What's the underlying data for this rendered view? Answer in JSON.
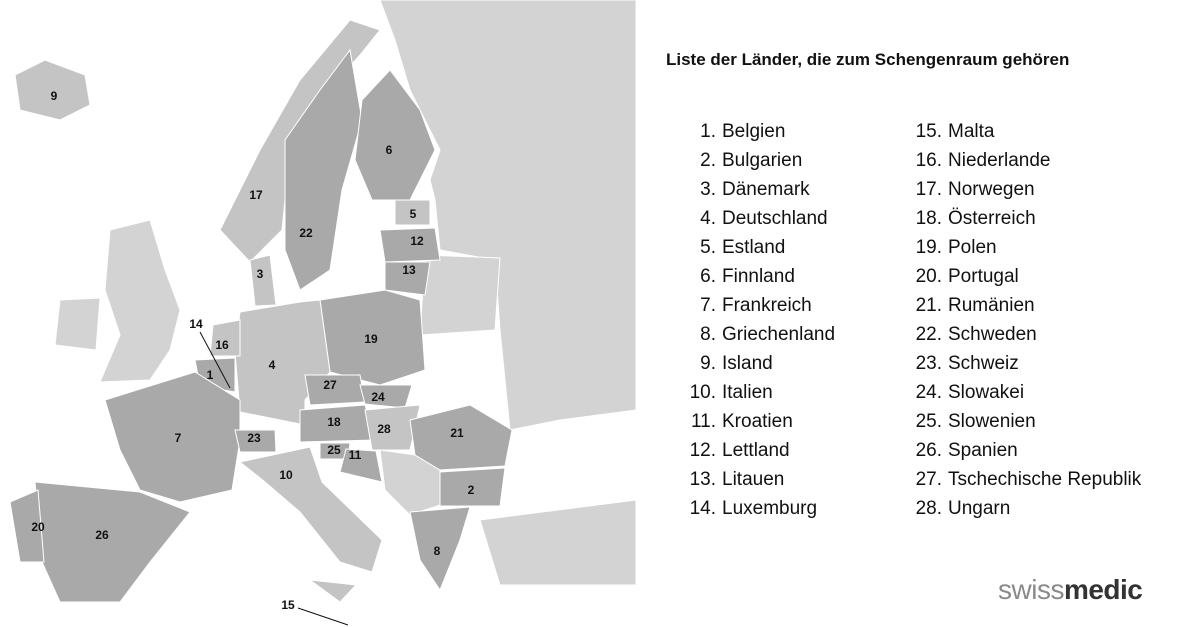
{
  "title": "Liste der Länder, die zum Schengenraum gehören",
  "countries": [
    {
      "number": "1.",
      "name": "Belgien"
    },
    {
      "number": "2.",
      "name": "Bulgarien"
    },
    {
      "number": "3.",
      "name": "Dänemark"
    },
    {
      "number": "4.",
      "name": "Deutschland"
    },
    {
      "number": "5.",
      "name": "Estland"
    },
    {
      "number": "6.",
      "name": "Finnland"
    },
    {
      "number": "7.",
      "name": "Frankreich"
    },
    {
      "number": "8.",
      "name": "Griechenland"
    },
    {
      "number": "9.",
      "name": "Island"
    },
    {
      "number": "10.",
      "name": "Italien"
    },
    {
      "number": "11.",
      "name": "Kroatien"
    },
    {
      "number": "12.",
      "name": "Lettland"
    },
    {
      "number": "13.",
      "name": "Litauen"
    },
    {
      "number": "14.",
      "name": "Luxemburg"
    },
    {
      "number": "15.",
      "name": "Malta"
    },
    {
      "number": "16.",
      "name": "Niederlande"
    },
    {
      "number": "17.",
      "name": "Norwegen"
    },
    {
      "number": "18.",
      "name": "Österreich"
    },
    {
      "number": "19.",
      "name": "Polen"
    },
    {
      "number": "20.",
      "name": "Portugal"
    },
    {
      "number": "21.",
      "name": "Rumänien"
    },
    {
      "number": "22.",
      "name": "Schweden"
    },
    {
      "number": "23.",
      "name": "Schweiz"
    },
    {
      "number": "24.",
      "name": "Slowakei"
    },
    {
      "number": "25.",
      "name": "Slowenien"
    },
    {
      "number": "26.",
      "name": "Spanien"
    },
    {
      "number": "27.",
      "name": "Tschechische Republik"
    },
    {
      "number": "28.",
      "name": "Ungarn"
    }
  ],
  "map_labels": [
    "9",
    "17",
    "6",
    "5",
    "22",
    "12",
    "13",
    "3",
    "14",
    "16",
    "19",
    "4",
    "1",
    "27",
    "24",
    "7",
    "18",
    "28",
    "21",
    "23",
    "25",
    "11",
    "10",
    "2",
    "20",
    "26",
    "8",
    "15"
  ],
  "logo": {
    "part1": "swiss",
    "part2": "medic"
  }
}
